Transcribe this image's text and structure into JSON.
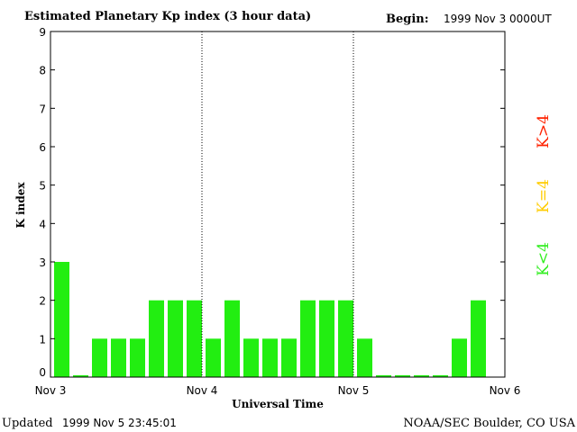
{
  "chart_data": {
    "type": "bar",
    "title": "Estimated Planetary Kp index (3 hour data)",
    "begin_label": "Begin:",
    "begin_value": "1999 Nov 3 0000UT",
    "xlabel": "Universal Time",
    "ylabel": "K index",
    "ylim": [
      0,
      9
    ],
    "yticks": [
      "0",
      "1",
      "2",
      "3",
      "4",
      "5",
      "6",
      "7",
      "8",
      "9"
    ],
    "xticks": [
      "Nov 3",
      "Nov 4",
      "Nov 5",
      "Nov 6"
    ],
    "values": [
      3,
      0.05,
      1,
      1,
      1,
      2,
      2,
      2,
      1,
      2,
      1,
      1,
      1,
      2,
      2,
      2,
      1,
      0.05,
      0.05,
      0.05,
      0.05,
      1,
      2
    ],
    "bar_color": "#22ee11",
    "legend": [
      {
        "label": "K<4",
        "color": "#33ee22"
      },
      {
        "label": "K=4",
        "color": "#ffcc00"
      },
      {
        "label": "K>4",
        "color": "#ff2200"
      }
    ],
    "grid": false
  },
  "footer": {
    "updated_label": "Updated",
    "updated_value": "1999 Nov  5 23:45:01",
    "source": "NOAA/SEC Boulder, CO USA"
  }
}
